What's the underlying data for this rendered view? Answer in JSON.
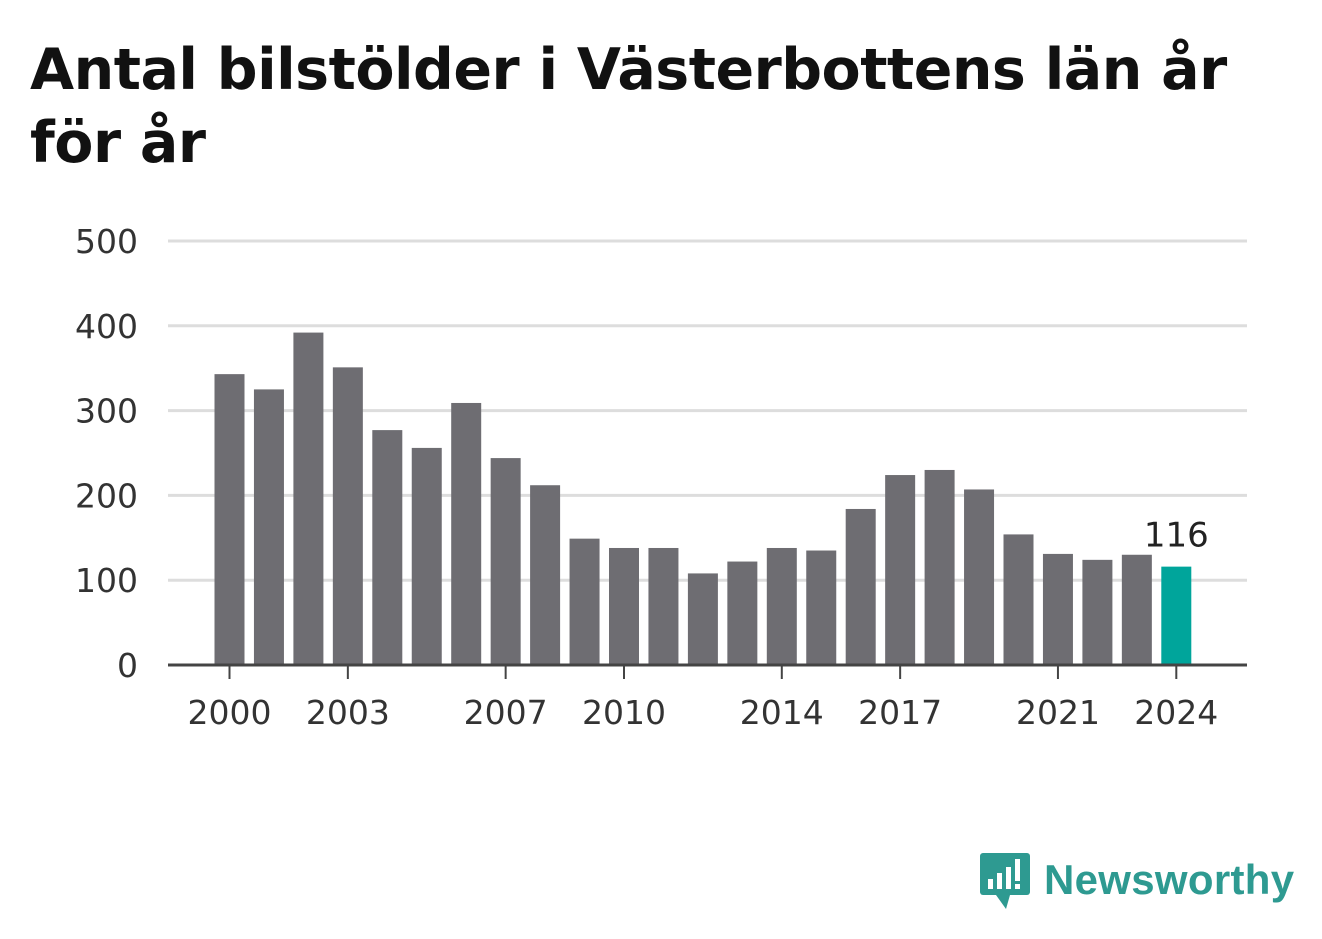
{
  "chart_data": {
    "type": "bar",
    "title": "Antal bilstölder i Västerbottens län år för år",
    "xlabel": "",
    "ylabel": "",
    "ylim": [
      0,
      500
    ],
    "yticks": [
      0,
      100,
      200,
      300,
      400,
      500
    ],
    "xticks": [
      "2000",
      "2003",
      "2007",
      "2010",
      "2014",
      "2017",
      "2021",
      "2024"
    ],
    "categories": [
      "2000",
      "2001",
      "2002",
      "2003",
      "2004",
      "2005",
      "2006",
      "2007",
      "2008",
      "2009",
      "2010",
      "2011",
      "2012",
      "2013",
      "2014",
      "2015",
      "2016",
      "2017",
      "2018",
      "2019",
      "2020",
      "2021",
      "2022",
      "2023",
      "2024"
    ],
    "values": [
      343,
      325,
      392,
      351,
      277,
      256,
      309,
      244,
      212,
      149,
      138,
      138,
      108,
      122,
      138,
      135,
      184,
      224,
      230,
      207,
      154,
      131,
      124,
      130,
      116
    ],
    "highlight_index": 24,
    "annotation": "116",
    "colors": {
      "bar": "#6e6d72",
      "highlight": "#00a59b",
      "grid": "#dddddd",
      "axis": "#444444"
    },
    "grid": true
  },
  "logo": {
    "text": "Newsworthy",
    "icon": "newsworthy-chart-bubble-icon",
    "color": "#2e9a91"
  }
}
